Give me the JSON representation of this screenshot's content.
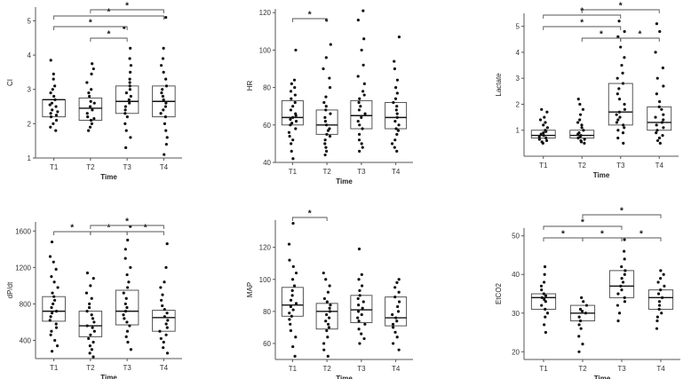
{
  "chart_data": [
    {
      "type": "box",
      "title": "",
      "xlabel": "Time",
      "ylabel": "CI",
      "categories": [
        "T1",
        "T2",
        "T3",
        "T4"
      ],
      "ylim": [
        1,
        5.4
      ],
      "yticks": [
        1,
        2,
        3,
        4,
        5
      ],
      "box_stats": [
        {
          "q1": 2.2,
          "median": 2.7,
          "q3": 2.7
        },
        {
          "q1": 2.1,
          "median": 2.45,
          "q3": 2.75
        },
        {
          "q1": 2.3,
          "median": 2.65,
          "q3": 3.1
        },
        {
          "q1": 2.2,
          "median": 2.65,
          "q3": 3.1
        }
      ],
      "points": [
        [
          1.8,
          1.9,
          2.0,
          2.1,
          2.2,
          2.25,
          2.3,
          2.35,
          2.4,
          2.5,
          2.55,
          2.6,
          2.7,
          2.8,
          2.9,
          3.0,
          3.1,
          3.3,
          3.45,
          3.85
        ],
        [
          1.8,
          1.9,
          2.0,
          2.1,
          2.15,
          2.2,
          2.3,
          2.4,
          2.5,
          2.6,
          2.65,
          2.8,
          2.9,
          3.0,
          3.2,
          3.45,
          3.6,
          3.75
        ],
        [
          1.3,
          1.6,
          1.8,
          2.0,
          2.2,
          2.3,
          2.4,
          2.5,
          2.6,
          2.7,
          2.8,
          2.9,
          3.0,
          3.1,
          3.2,
          3.3,
          3.5,
          3.7,
          3.9,
          4.2,
          4.8
        ],
        [
          1.1,
          1.4,
          1.6,
          1.8,
          2.0,
          2.2,
          2.3,
          2.4,
          2.5,
          2.6,
          2.7,
          2.8,
          2.9,
          3.0,
          3.1,
          3.3,
          3.5,
          3.7,
          3.9,
          4.2,
          5.1
        ]
      ],
      "brackets": [
        {
          "from": "T2",
          "to": "T4",
          "label": "*"
        },
        {
          "from": "T1",
          "to": "T4",
          "label": "*"
        },
        {
          "from": "T1",
          "to": "T3",
          "label": "*"
        },
        {
          "from": "T2",
          "to": "T3",
          "label": "*"
        }
      ]
    },
    {
      "type": "box",
      "title": "",
      "xlabel": "Time",
      "ylabel": "HR",
      "categories": [
        "T1",
        "T2",
        "T3",
        "T4"
      ],
      "ylim": [
        40,
        122
      ],
      "yticks": [
        40,
        60,
        80,
        100,
        120
      ],
      "box_stats": [
        {
          "q1": 60,
          "median": 64,
          "q3": 73
        },
        {
          "q1": 55,
          "median": 60,
          "q3": 68
        },
        {
          "q1": 58,
          "median": 65,
          "q3": 73
        },
        {
          "q1": 58,
          "median": 64,
          "q3": 72
        }
      ],
      "points": [
        [
          42,
          46,
          50,
          52,
          54,
          56,
          58,
          60,
          61,
          62,
          63,
          64,
          65,
          66,
          68,
          70,
          72,
          74,
          76,
          78,
          80,
          82,
          84,
          100
        ],
        [
          44,
          46,
          48,
          50,
          52,
          54,
          55,
          57,
          58,
          60,
          62,
          64,
          66,
          68,
          70,
          72,
          75,
          80,
          85,
          90,
          96,
          103,
          116
        ],
        [
          46,
          48,
          50,
          52,
          55,
          58,
          60,
          62,
          64,
          66,
          68,
          70,
          72,
          74,
          76,
          78,
          82,
          86,
          92,
          100,
          106,
          116,
          121
        ],
        [
          46,
          48,
          50,
          52,
          55,
          57,
          58,
          60,
          62,
          64,
          66,
          68,
          70,
          72,
          74,
          77,
          80,
          84,
          90,
          94,
          107
        ]
      ],
      "brackets": [
        {
          "from": "T1",
          "to": "T2",
          "label": "*"
        }
      ]
    },
    {
      "type": "box",
      "title": "",
      "xlabel": "Time",
      "ylabel": "Lactate",
      "categories": [
        "T1",
        "T2",
        "T3",
        "T4"
      ],
      "ylim": [
        0,
        5.5
      ],
      "yticks": [
        1,
        2,
        3,
        4,
        5
      ],
      "box_stats": [
        {
          "q1": 0.7,
          "median": 0.8,
          "q3": 1.0
        },
        {
          "q1": 0.7,
          "median": 0.8,
          "q3": 1.0
        },
        {
          "q1": 1.2,
          "median": 1.7,
          "q3": 2.8
        },
        {
          "q1": 1.0,
          "median": 1.3,
          "q3": 1.9
        }
      ],
      "points": [
        [
          0.5,
          0.55,
          0.6,
          0.65,
          0.7,
          0.75,
          0.8,
          0.85,
          0.9,
          0.95,
          1.0,
          1.1,
          1.2,
          1.3,
          1.4,
          1.5,
          1.7,
          1.8
        ],
        [
          0.5,
          0.55,
          0.6,
          0.65,
          0.7,
          0.75,
          0.8,
          0.85,
          0.9,
          1.0,
          1.1,
          1.2,
          1.3,
          1.4,
          1.6,
          1.8,
          2.0,
          2.2
        ],
        [
          0.5,
          0.7,
          0.9,
          1.0,
          1.1,
          1.2,
          1.3,
          1.4,
          1.5,
          1.6,
          1.7,
          1.8,
          2.0,
          2.2,
          2.4,
          2.6,
          2.8,
          3.0,
          3.2,
          3.5,
          3.8,
          4.2,
          4.6,
          4.8,
          5.2
        ],
        [
          0.5,
          0.6,
          0.7,
          0.8,
          0.9,
          1.0,
          1.1,
          1.2,
          1.3,
          1.4,
          1.5,
          1.6,
          1.8,
          1.9,
          2.1,
          2.4,
          2.7,
          3.0,
          3.4,
          4.0,
          4.8,
          5.1
        ]
      ],
      "brackets": [
        {
          "from": "T1",
          "to": "T3",
          "label": "*"
        },
        {
          "from": "T2",
          "to": "T3",
          "label": "*"
        },
        {
          "from": "T3",
          "to": "T4",
          "label": "*"
        },
        {
          "from": "T1",
          "to": "T3",
          "label": "*"
        },
        {
          "from": "T2",
          "to": "T4",
          "label": "*"
        }
      ]
    },
    {
      "type": "box",
      "title": "",
      "xlabel": "Time",
      "ylabel": "dP/dt",
      "categories": [
        "T1",
        "T2",
        "T3",
        "T4"
      ],
      "ylim": [
        200,
        1700
      ],
      "yticks": [
        400,
        800,
        1200,
        1600
      ],
      "box_stats": [
        {
          "q1": 610,
          "median": 720,
          "q3": 880
        },
        {
          "q1": 440,
          "median": 560,
          "q3": 720
        },
        {
          "q1": 570,
          "median": 720,
          "q3": 950
        },
        {
          "q1": 500,
          "median": 650,
          "q3": 730
        }
      ],
      "points": [
        [
          280,
          340,
          400,
          460,
          500,
          540,
          580,
          620,
          660,
          700,
          720,
          760,
          800,
          840,
          880,
          920,
          980,
          1040,
          1100,
          1180,
          1260,
          1320,
          1480
        ],
        [
          220,
          260,
          300,
          340,
          380,
          420,
          460,
          500,
          540,
          560,
          600,
          640,
          680,
          720,
          760,
          800,
          860,
          920,
          1000,
          1080,
          1140
        ],
        [
          300,
          380,
          440,
          500,
          560,
          600,
          640,
          680,
          720,
          760,
          800,
          860,
          920,
          980,
          1040,
          1120,
          1200,
          1300,
          1400,
          1500,
          1650
        ],
        [
          260,
          320,
          380,
          420,
          460,
          500,
          540,
          580,
          620,
          660,
          700,
          740,
          780,
          840,
          900,
          980,
          1040,
          1200,
          1460
        ]
      ],
      "brackets": [
        {
          "from": "T1",
          "to": "T2",
          "label": "*"
        },
        {
          "from": "T2",
          "to": "T3",
          "label": "*"
        },
        {
          "from": "T2",
          "to": "T4",
          "label": "*"
        },
        {
          "from": "T3",
          "to": "T4",
          "label": "*"
        }
      ]
    },
    {
      "type": "box",
      "title": "",
      "xlabel": "Time",
      "ylabel": "MAP",
      "categories": [
        "T1",
        "T2",
        "T3",
        "T4"
      ],
      "ylim": [
        50,
        137
      ],
      "yticks": [
        60,
        80,
        100,
        120
      ],
      "box_stats": [
        {
          "q1": 77,
          "median": 84,
          "q3": 95
        },
        {
          "q1": 69,
          "median": 80,
          "q3": 85
        },
        {
          "q1": 73,
          "median": 81,
          "q3": 90
        },
        {
          "q1": 71,
          "median": 76,
          "q3": 89
        }
      ],
      "points": [
        [
          52,
          58,
          64,
          68,
          72,
          75,
          77,
          79,
          81,
          83,
          85,
          87,
          90,
          93,
          96,
          100,
          104,
          108,
          112,
          122,
          135
        ],
        [
          52,
          56,
          60,
          64,
          68,
          70,
          72,
          74,
          76,
          78,
          80,
          82,
          84,
          86,
          88,
          92,
          96,
          100,
          104
        ],
        [
          60,
          63,
          66,
          69,
          72,
          74,
          76,
          78,
          80,
          82,
          84,
          86,
          88,
          90,
          93,
          96,
          100,
          103,
          119
        ],
        [
          56,
          60,
          64,
          67,
          70,
          72,
          74,
          76,
          78,
          80,
          83,
          86,
          89,
          92,
          95,
          98,
          100
        ]
      ],
      "brackets": [
        {
          "from": "T1",
          "to": "T2",
          "label": "*"
        }
      ]
    },
    {
      "type": "box",
      "title": "",
      "xlabel": "Time",
      "ylabel": "EtCO2",
      "categories": [
        "T1",
        "T2",
        "T3",
        "T4"
      ],
      "ylim": [
        18,
        52
      ],
      "yticks": [
        20,
        30,
        40,
        50
      ],
      "box_stats": [
        {
          "q1": 31,
          "median": 34,
          "q3": 35
        },
        {
          "q1": 28,
          "median": 30,
          "q3": 32
        },
        {
          "q1": 34,
          "median": 37,
          "q3": 41
        },
        {
          "q1": 31,
          "median": 34,
          "q3": 36
        }
      ],
      "points": [
        [
          25,
          27,
          29,
          30,
          31,
          32,
          33,
          33.5,
          34,
          34.5,
          35,
          36,
          37,
          38,
          40,
          42
        ],
        [
          20,
          22,
          24,
          26,
          27,
          28,
          29,
          30,
          30.5,
          31,
          32,
          33,
          34
        ],
        [
          28,
          30,
          32,
          33,
          34,
          35,
          36,
          37,
          38,
          39,
          40,
          41,
          42,
          44,
          46,
          49
        ],
        [
          26,
          28,
          29,
          30,
          31,
          32,
          33,
          34,
          35,
          36,
          37,
          38,
          39,
          40,
          41
        ]
      ],
      "brackets": [
        {
          "from": "T1",
          "to": "T2",
          "label": "*"
        },
        {
          "from": "T2",
          "to": "T3",
          "label": "*"
        },
        {
          "from": "T3",
          "to": "T4",
          "label": "*"
        },
        {
          "from": "T1",
          "to": "T3",
          "label": "*"
        },
        {
          "from": "T2",
          "to": "T4",
          "label": "*"
        }
      ]
    }
  ]
}
